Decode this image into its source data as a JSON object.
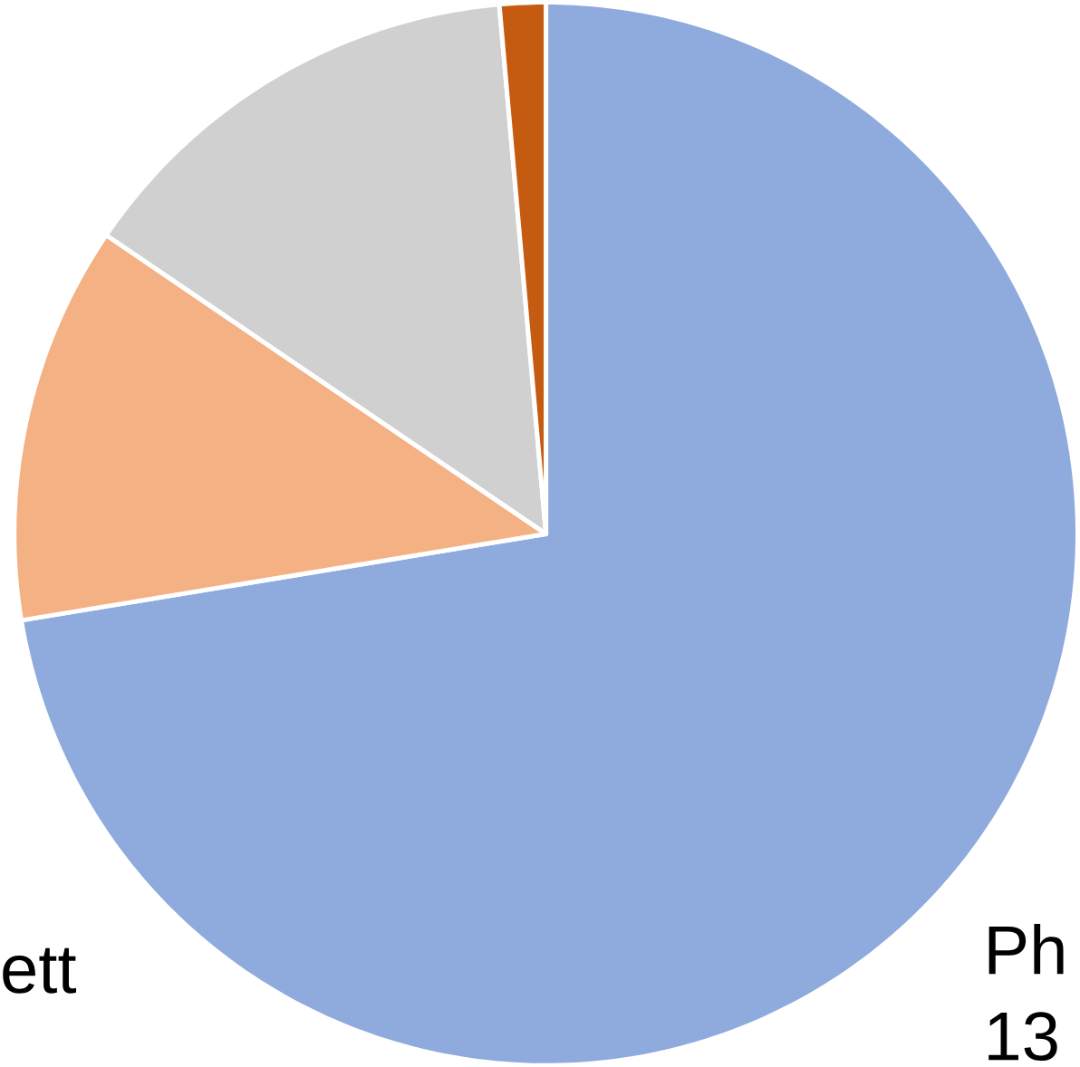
{
  "chart_data": {
    "type": "pie",
    "categories": [
      null,
      null,
      null,
      null
    ],
    "values": [
      72.4,
      12.1,
      14.1,
      1.4
    ],
    "colors": [
      "#8faadc",
      "#f4b183",
      "#d0d0d0",
      "#c55a11"
    ],
    "annotations": [
      "ett",
      "Ph",
      "13"
    ]
  }
}
